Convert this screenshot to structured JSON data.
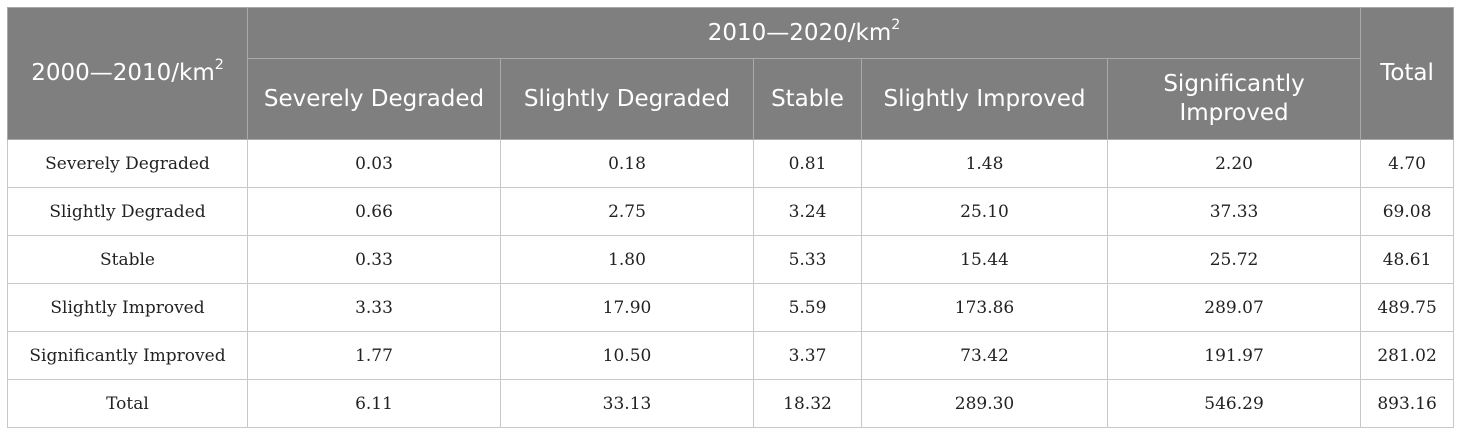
{
  "table": {
    "row_axis_label": "2000—2010/km",
    "col_axis_label": "2010—2020/km",
    "unit_sup": "2",
    "total_label": "Total",
    "columns": [
      "Severely Degraded",
      "Slightly Degraded",
      "Stable",
      "Slightly Improved",
      "Significantly Improved"
    ],
    "rows": [
      {
        "label": "Severely Degraded",
        "values": [
          "0.03",
          "0.18",
          "0.81",
          "1.48",
          "2.20"
        ],
        "total": "4.70"
      },
      {
        "label": "Slightly Degraded",
        "values": [
          "0.66",
          "2.75",
          "3.24",
          "25.10",
          "37.33"
        ],
        "total": "69.08"
      },
      {
        "label": "Stable",
        "values": [
          "0.33",
          "1.80",
          "5.33",
          "15.44",
          "25.72"
        ],
        "total": "48.61"
      },
      {
        "label": "Slightly Improved",
        "values": [
          "3.33",
          "17.90",
          "5.59",
          "173.86",
          "289.07"
        ],
        "total": "489.75"
      },
      {
        "label": "Significantly Improved",
        "values": [
          "1.77",
          "10.50",
          "3.37",
          "73.42",
          "191.97"
        ],
        "total": "281.02"
      },
      {
        "label": "Total",
        "values": [
          "6.11",
          "33.13",
          "18.32",
          "289.30",
          "546.29"
        ],
        "total": "893.16"
      }
    ]
  }
}
